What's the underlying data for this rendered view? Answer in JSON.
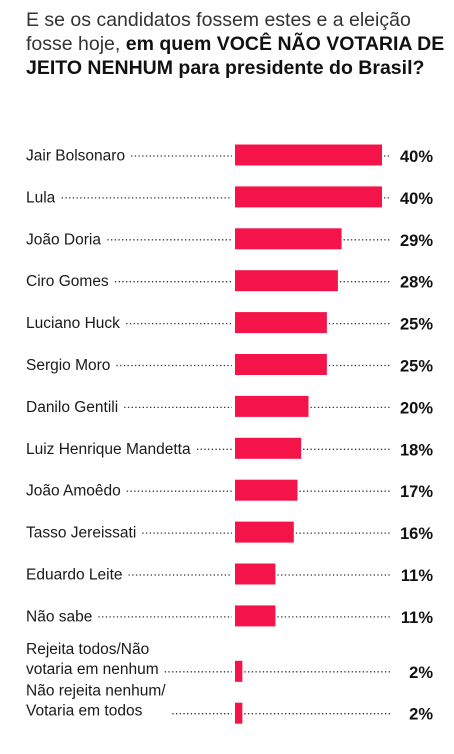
{
  "title": {
    "light": "E se os candidatos fossem estes e a eleição fosse hoje,",
    "bold": "em quem VOCÊ NÃO VOTARIA DE JEITO NENHUM para presidente do Brasil?"
  },
  "colors": {
    "bar": "#f5144a",
    "text": "#1a1a1a"
  },
  "chart_data": {
    "type": "bar",
    "orientation": "horizontal",
    "title": "E se os candidatos fossem estes e a eleição fosse hoje, em quem VOCÊ NÃO VOTARIA DE JEITO NENHUM para presidente do Brasil?",
    "categories": [
      [
        "Jair Bolsonaro"
      ],
      [
        "Lula"
      ],
      [
        "João Doria"
      ],
      [
        "Ciro Gomes"
      ],
      [
        "Luciano Huck"
      ],
      [
        "Sergio Moro"
      ],
      [
        "Danilo Gentili"
      ],
      [
        "Luiz Henrique Mandetta"
      ],
      [
        "João Amoêdo"
      ],
      [
        "Tasso Jereissati"
      ],
      [
        "Eduardo Leite"
      ],
      [
        "Não sabe"
      ],
      [
        "Rejeita todos/Não",
        "votaria em nenhum"
      ],
      [
        "Não rejeita nenhum/",
        "Votaria em todos"
      ]
    ],
    "values": [
      40,
      40,
      29,
      28,
      25,
      25,
      20,
      18,
      17,
      16,
      11,
      11,
      2,
      2
    ],
    "value_labels": [
      "40%",
      "40%",
      "29%",
      "28%",
      "25%",
      "25%",
      "20%",
      "18%",
      "17%",
      "16%",
      "11%",
      "11%",
      "2%",
      "2%"
    ],
    "xlim": [
      0,
      40
    ],
    "xlabel": "",
    "ylabel": "",
    "grid": false,
    "legend": "none"
  }
}
